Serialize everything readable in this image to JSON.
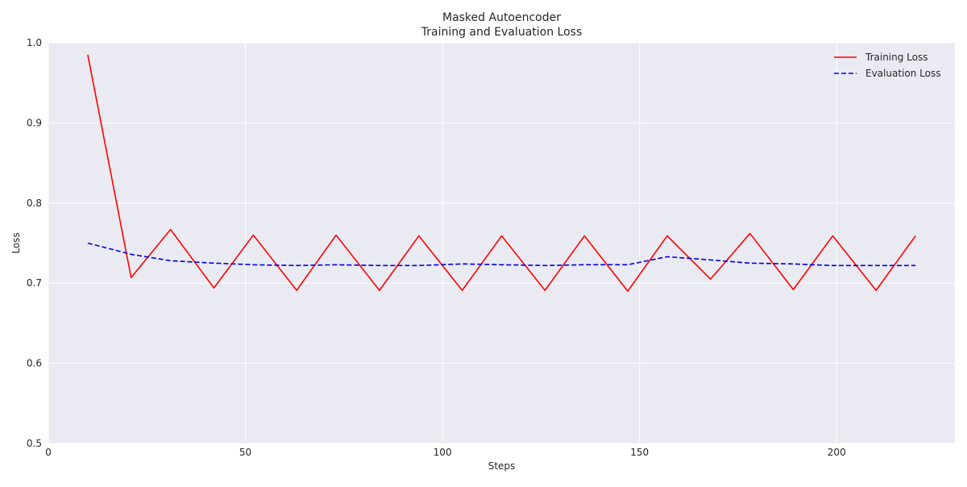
{
  "chart_data": {
    "type": "line",
    "title": "Masked Autoencoder",
    "subtitle": "Training and Evaluation Loss",
    "xlabel": "Steps",
    "ylabel": "Loss",
    "xlim": [
      0,
      230
    ],
    "ylim": [
      0.5,
      1.0
    ],
    "xticks": [
      0,
      50,
      100,
      150,
      200
    ],
    "yticks": [
      0.5,
      0.6,
      0.7,
      0.8,
      0.9,
      1.0
    ],
    "grid": true,
    "legend_position": "top-right",
    "series": [
      {
        "name": "Training Loss",
        "color": "#ff0000",
        "style": "solid",
        "x": [
          10,
          21,
          31,
          42,
          52,
          63,
          73,
          84,
          94,
          105,
          115,
          126,
          136,
          147,
          157,
          168,
          178,
          189,
          199,
          210,
          220
        ],
        "values": [
          0.985,
          0.707,
          0.767,
          0.694,
          0.76,
          0.691,
          0.76,
          0.691,
          0.759,
          0.691,
          0.759,
          0.691,
          0.759,
          0.69,
          0.759,
          0.705,
          0.762,
          0.692,
          0.759,
          0.691,
          0.759
        ]
      },
      {
        "name": "Evaluation Loss",
        "color": "#0000dd",
        "style": "dashed",
        "x": [
          10,
          21,
          31,
          42,
          52,
          63,
          73,
          84,
          94,
          105,
          115,
          126,
          136,
          147,
          157,
          168,
          178,
          189,
          199,
          210,
          220
        ],
        "values": [
          0.75,
          0.736,
          0.728,
          0.725,
          0.723,
          0.722,
          0.723,
          0.722,
          0.722,
          0.724,
          0.723,
          0.722,
          0.723,
          0.723,
          0.733,
          0.729,
          0.725,
          0.724,
          0.722,
          0.722,
          0.722
        ]
      }
    ]
  }
}
